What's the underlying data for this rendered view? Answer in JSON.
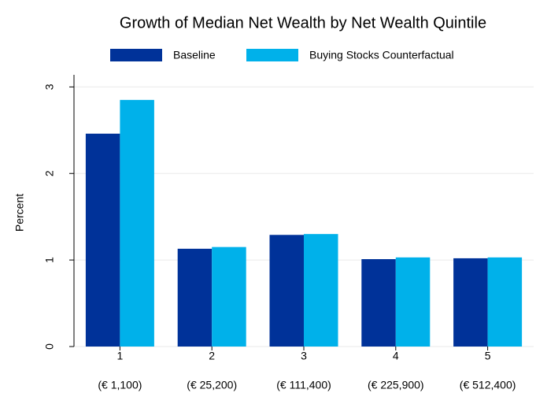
{
  "chart_data": {
    "type": "bar",
    "title": "Growth of Median Net Wealth by Net Wealth Quintile",
    "y_label": "Percent",
    "categories": [
      "1",
      "2",
      "3",
      "4",
      "5"
    ],
    "category_sublabels": [
      "(€ 1,100)",
      "(€ 25,200)",
      "(€ 111,400)",
      "(€ 225,900)",
      "(€ 512,400)"
    ],
    "series": [
      {
        "name": "Baseline",
        "color": "#003299",
        "values": [
          2.46,
          1.13,
          1.29,
          1.01,
          1.02
        ]
      },
      {
        "name": "Buying Stocks Counterfactual",
        "color": "#00b1ea",
        "values": [
          2.85,
          1.15,
          1.3,
          1.03,
          1.03
        ]
      }
    ],
    "ylim": [
      0,
      3.14
    ],
    "yticks": [
      0,
      1,
      2,
      3
    ],
    "grid": true
  }
}
